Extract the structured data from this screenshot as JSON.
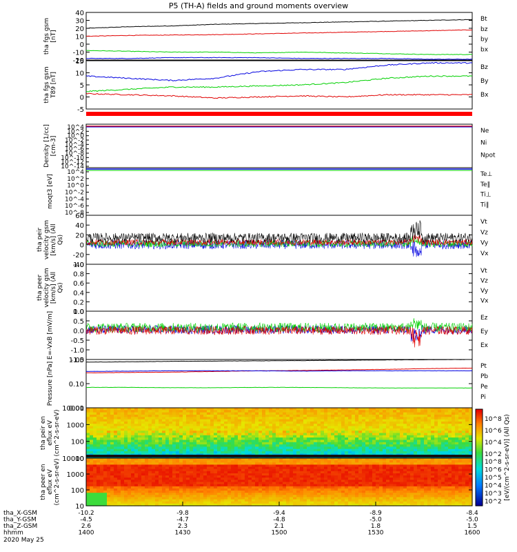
{
  "title": "P5 (TH-A) fields and ground moments overview",
  "date_label": "2020 May 25",
  "colors": {
    "black": "#000000",
    "red": "#e00000",
    "green": "#00d000",
    "blue": "#0000e0",
    "pos_red": "#ff0000"
  },
  "colorbar_label": "[eV/(cm^2-s-sr-eV)] (All Qs)",
  "colorbar_ticks_top": [
    "10^8",
    "10^6",
    "10^4",
    "10^2"
  ],
  "colorbar_ticks_bottom": [
    "10^8",
    "10^6",
    "10^5",
    "10^4",
    "10^3",
    "10^2"
  ],
  "ephemeris": {
    "rows": [
      {
        "label": "tha_X-GSM",
        "values": [
          "-10.2",
          "-9.8",
          "-9.4",
          "-8.9",
          "-8.4"
        ]
      },
      {
        "label": "tha_Y-GSM",
        "values": [
          "-4.5",
          "-4.7",
          "-4.8",
          "-5.0",
          "-5.0"
        ]
      },
      {
        "label": "tha_Z-GSM",
        "values": [
          "2.6",
          "2.3",
          "2.1",
          "1.8",
          "1.5"
        ]
      },
      {
        "label": "hhmm",
        "values": [
          "1400",
          "1430",
          "1500",
          "1530",
          "1600"
        ]
      }
    ]
  },
  "chart_data": [
    {
      "type": "line",
      "ylabel": "tha fgs gsm [nT]",
      "yticks": [
        "40",
        "30",
        "20",
        "10",
        "0",
        "-10",
        "-20"
      ],
      "ylim": [
        -20,
        40
      ],
      "series": [
        {
          "name": "Bt",
          "color": "#000000",
          "values": [
            20,
            22,
            23,
            25,
            26,
            27,
            28,
            29,
            30,
            31
          ]
        },
        {
          "name": "bz",
          "color": "#e00000",
          "values": [
            10,
            11,
            11.5,
            12,
            13,
            14,
            15,
            16,
            17,
            18
          ]
        },
        {
          "name": "by",
          "color": "#00d000",
          "values": [
            -8,
            -9,
            -10,
            -10,
            -11,
            -10,
            -11,
            -12,
            -13,
            -13
          ]
        },
        {
          "name": "bx",
          "color": "#0000e0",
          "values": [
            -18,
            -18,
            -17,
            -17,
            -17,
            -18,
            -18,
            -18,
            -19,
            -19
          ]
        }
      ]
    },
    {
      "type": "line",
      "ylabel": "tha fgs gsm T89 [nT]",
      "yticks": [
        "15",
        "10",
        "5",
        "0",
        "-5"
      ],
      "ylim": [
        -7,
        15
      ],
      "series": [
        {
          "name": "Bz",
          "color": "#e00000",
          "values": [
            0,
            -0.5,
            -1,
            -2,
            -1.5,
            -1,
            -1.5,
            -0.5,
            -0.5,
            -0.5
          ]
        },
        {
          "name": "By",
          "color": "#00d000",
          "values": [
            1,
            2,
            3,
            3,
            3.5,
            4,
            5,
            7,
            8,
            8
          ]
        },
        {
          "name": "Bx",
          "color": "#0000e0",
          "values": [
            8,
            7,
            6,
            7,
            10,
            11,
            11,
            13,
            14,
            14
          ]
        }
      ]
    },
    {
      "type": "line",
      "ylabel": "Density [1/cc] [cm-3]",
      "yticks": [
        "10^4",
        "10^2",
        "10^0",
        "10^-2",
        "10^-4",
        "10^-6",
        "10^-8",
        "10^-10",
        "10^-12",
        "10^-14"
      ],
      "series": [
        {
          "name": "Ne",
          "color": "#e00000"
        },
        {
          "name": "Ni",
          "color": "#000000"
        },
        {
          "name": "Npot",
          "color": "#0000e0"
        }
      ]
    },
    {
      "type": "line",
      "ylabel": "moqt3 [eV]",
      "yticks": [
        "10^4",
        "10^2",
        "10^0",
        "10^-2",
        "10^-4",
        "10^-6",
        "10^-8"
      ],
      "series": [
        {
          "name": "Te⊥",
          "color": "#e00000"
        },
        {
          "name": "Te∥",
          "color": "#000000"
        },
        {
          "name": "Ti⊥",
          "color": "#0000e0"
        },
        {
          "name": "Ti∥",
          "color": "#00d000"
        }
      ]
    },
    {
      "type": "line",
      "ylabel": "tha peir velocity gsm [km/s] (All Qs)",
      "yticks": [
        "60",
        "40",
        "20",
        "0",
        "-20",
        "-40"
      ],
      "ylim": [
        -40,
        60
      ],
      "series": [
        {
          "name": "Vt",
          "color": "#000000"
        },
        {
          "name": "Vz",
          "color": "#e00000"
        },
        {
          "name": "Vy",
          "color": "#00d000"
        },
        {
          "name": "Vx",
          "color": "#0000e0"
        }
      ]
    },
    {
      "type": "line",
      "ylabel": "tha peer velocity gsm [km/s] (All Qs)",
      "yticks": [
        "1.0",
        "0.8",
        "0.6",
        "0.4",
        "0.2",
        "0.0"
      ],
      "ylim": [
        0,
        1
      ],
      "series": [
        {
          "name": "Vt",
          "color": "#000000"
        },
        {
          "name": "Vz",
          "color": "#e00000"
        },
        {
          "name": "Vy",
          "color": "#00d000"
        },
        {
          "name": "Vx",
          "color": "#0000e0"
        }
      ]
    },
    {
      "type": "line",
      "ylabel": "E=-VxB [mV/m]",
      "yticks": [
        "1.0",
        "0.5",
        "0.0",
        "-0.5",
        "-1.0",
        "-1.5"
      ],
      "ylim": [
        -1.5,
        1.0
      ],
      "series": [
        {
          "name": "Ez",
          "color": "#e00000"
        },
        {
          "name": "Ey",
          "color": "#00d000"
        },
        {
          "name": "Ex",
          "color": "#0000e0"
        }
      ]
    },
    {
      "type": "line",
      "ylabel": "Pressure [nPa]",
      "yticks": [
        "1.00",
        "0.10",
        "0.01"
      ],
      "series": [
        {
          "name": "Pt",
          "color": "#000000",
          "values": [
            0.78,
            0.8,
            0.84,
            0.86,
            0.88,
            0.9,
            0.93,
            0.96,
            0.98,
            1.0
          ]
        },
        {
          "name": "Pb",
          "color": "#e00000",
          "values": [
            0.28,
            0.29,
            0.3,
            0.32,
            0.34,
            0.35,
            0.37,
            0.39,
            0.42,
            0.44
          ]
        },
        {
          "name": "Pe",
          "color": "#00d000",
          "values": [
            0.07,
            0.07,
            0.068,
            0.068,
            0.07,
            0.07,
            0.068,
            0.066,
            0.066,
            0.066
          ]
        },
        {
          "name": "Pi",
          "color": "#0000e0",
          "values": [
            0.32,
            0.33,
            0.34,
            0.34,
            0.34,
            0.33,
            0.34,
            0.34,
            0.34,
            0.34
          ]
        }
      ]
    },
    {
      "type": "heatmap",
      "ylabel": "tha peir en eflux eV (cm^2-s-sr-eV)",
      "yticks": [
        "10000",
        "1000",
        "100",
        "10"
      ]
    },
    {
      "type": "heatmap",
      "ylabel": "tha peer en eflux eV (cm^2-s-sr-eV)",
      "yticks": [
        "10000",
        "1000",
        "100",
        "10"
      ]
    }
  ],
  "xaxis": {
    "ticks": [
      "1400",
      "1430",
      "1500",
      "1530",
      "1600"
    ]
  }
}
